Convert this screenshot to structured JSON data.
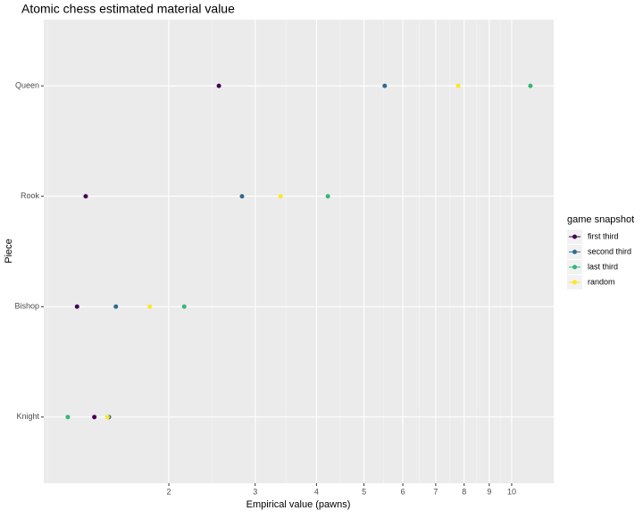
{
  "chart_data": {
    "type": "scatter",
    "title": "Atomic chess estimated material value",
    "x_label": "Empirical value (pawns)",
    "y_label": "Piece",
    "categories": [
      "Knight",
      "Bishop",
      "Rook",
      "Queen"
    ],
    "series": [
      {
        "name": "first third",
        "color": "#440154",
        "values": [
          1.41,
          1.3,
          1.354,
          2.53
        ]
      },
      {
        "name": "second third",
        "color": "#31688E",
        "values": [
          1.51,
          1.56,
          2.82,
          5.51
        ]
      },
      {
        "name": "last third",
        "color": "#35B779",
        "values": [
          1.245,
          2.15,
          4.22,
          10.92
        ]
      },
      {
        "name": "random",
        "color": "#FDE725",
        "values": [
          1.5,
          1.83,
          3.38,
          7.78
        ]
      }
    ],
    "legend_title": "game snapshot",
    "xlim": [
      1.112,
      12.18
    ],
    "xticks": [
      2,
      3,
      4,
      5,
      6,
      7,
      8,
      9,
      10
    ],
    "log_x": true,
    "grid": true
  }
}
